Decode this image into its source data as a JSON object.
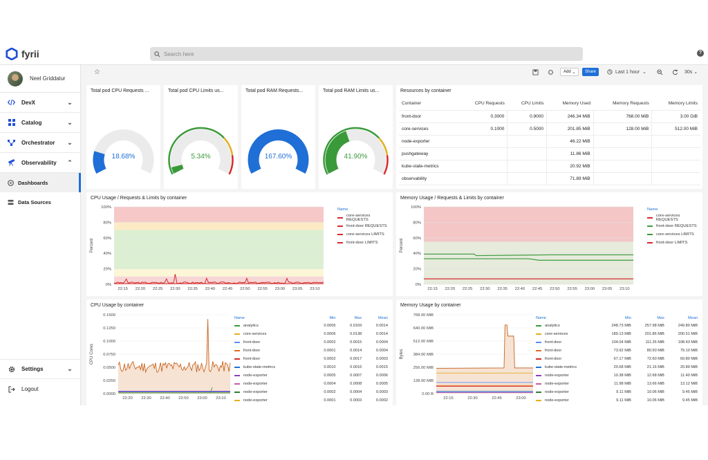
{
  "app": {
    "name": "fyrii",
    "search_placeholder": "Search here",
    "help": "?"
  },
  "user": {
    "name": "Neel Griddalur"
  },
  "nav": [
    {
      "label": "DevX",
      "icon": "code-icon"
    },
    {
      "label": "Catalog",
      "icon": "grid-icon"
    },
    {
      "label": "Orchestrator",
      "icon": "flow-icon"
    },
    {
      "label": "Observability",
      "icon": "telescope-icon"
    }
  ],
  "subnav": [
    {
      "label": "Dashboards",
      "active": true
    },
    {
      "label": "Data Sources",
      "active": false
    }
  ],
  "bottom_nav": {
    "settings": "Settings",
    "logout": "Logout"
  },
  "toolbar": {
    "add": "Add",
    "share": "Share",
    "time_range": "Last 1 hour",
    "refresh": "30s"
  },
  "gauges": [
    {
      "title": "Total pod CPU Requests ...",
      "value": "18.68%",
      "fill": 0.1868,
      "color": "#1f6fd6"
    },
    {
      "title": "Total pod CPU Limits us...",
      "value": "5.34%",
      "fill": 0.0534,
      "color": "#3a9a3a"
    },
    {
      "title": "Total pod RAM Requests...",
      "value": "167.60%",
      "fill": 1.0,
      "color": "#1f6fd6"
    },
    {
      "title": "Total pod RAM Limits us...",
      "value": "41.90%",
      "fill": 0.419,
      "color": "#3a9a3a"
    }
  ],
  "resources": {
    "title": "Resources by container",
    "headers": [
      "Container",
      "CPU Requests",
      "CPU Limits",
      "Memory Used",
      "Memory Requests",
      "Memory Limits"
    ],
    "rows": [
      [
        "front-door",
        "0.3000",
        "0.9000",
        "246.34 MiB",
        "768.00 MiB",
        "3.00 GiB"
      ],
      [
        "core-services",
        "0.1000",
        "0.5000",
        "201.85 MiB",
        "128.00 MiB",
        "512.00 MiB"
      ],
      [
        "node-exporter",
        "",
        "",
        "46.22 MiB",
        "",
        ""
      ],
      [
        "pushgateway",
        "",
        "",
        "11.86 MiB",
        "",
        ""
      ],
      [
        "kube-state-metrics",
        "",
        "",
        "20.92 MiB",
        "",
        ""
      ],
      [
        "observability",
        "",
        "",
        "71.89 MiB",
        "",
        ""
      ]
    ]
  },
  "cpu_req": {
    "title": "CPU Usage / Requests & Limits by container",
    "ylabel": "Percent",
    "legend_title": "Name",
    "yticks": [
      "100%",
      "80%",
      "60%",
      "40%",
      "20%",
      "0%"
    ],
    "xticks": [
      "22:15",
      "22:20",
      "22:25",
      "22:30",
      "22:35",
      "22:40",
      "22:45",
      "22:50",
      "22:55",
      "23:00",
      "23:05",
      "23:10"
    ],
    "legend": [
      {
        "name": "core-services REQUESTS",
        "color": "#d62a2a"
      },
      {
        "name": "front-door REQUESTS",
        "color": "#d62a2a"
      },
      {
        "name": "core-services LIMITS",
        "color": "#d62a2a"
      },
      {
        "name": "front-door LIMITS",
        "color": "#d62a2a"
      }
    ]
  },
  "mem_req": {
    "title": "Memory Usage / Requests & Limits by container",
    "ylabel": "Percent",
    "legend_title": "Name",
    "yticks": [
      "100%",
      "80%",
      "60%",
      "40%",
      "20%",
      "0%"
    ],
    "xticks": [
      "22:15",
      "22:20",
      "22:25",
      "22:30",
      "22:35",
      "22:40",
      "22:45",
      "22:50",
      "22:55",
      "23:00",
      "23:05",
      "23:10"
    ],
    "legend": [
      {
        "name": "core-services REQUESTS",
        "color": "#d62a2a"
      },
      {
        "name": "front-door REQUESTS",
        "color": "#3a9a3a"
      },
      {
        "name": "core-services LIMITS",
        "color": "#3a9a3a"
      },
      {
        "name": "front-door LIMITS",
        "color": "#d62a2a"
      }
    ]
  },
  "cpu_usage": {
    "title": "CPU Usage by container",
    "ylabel": "CPU Cores",
    "yticks": [
      "0.1500",
      "0.1250",
      "0.1000",
      "0.0750",
      "0.0500",
      "0.0250",
      "0.0000"
    ],
    "xticks": [
      "22:20",
      "22:30",
      "22:40",
      "22:50",
      "23:00",
      "23:10"
    ],
    "headers": [
      "Name",
      "Min",
      "Max",
      "Mean"
    ],
    "rows": [
      [
        "analytics",
        "0.0005",
        "0.0169",
        "0.0014",
        "#3a9a3a"
      ],
      [
        "core-services",
        "0.0006",
        "0.0138",
        "0.0014",
        "#e0b020"
      ],
      [
        "front-door",
        "0.0002",
        "0.0015",
        "0.0004",
        "#5b8def"
      ],
      [
        "front-door",
        "0.0001",
        "0.0014",
        "0.0004",
        "#e06b1f"
      ],
      [
        "front-door",
        "0.0002",
        "0.0017",
        "0.0003",
        "#d62a2a"
      ],
      [
        "kube-state-metrics",
        "0.0010",
        "0.0016",
        "0.0015",
        "#1f6fd6"
      ],
      [
        "node-exporter",
        "0.0005",
        "0.0007",
        "0.0006",
        "#8c3fbf"
      ],
      [
        "node-exporter",
        "0.0004",
        "0.0008",
        "0.0005",
        "#c85aa0"
      ],
      [
        "node-exporter",
        "0.0002",
        "0.0004",
        "0.0003",
        "#2e7d32"
      ],
      [
        "node-exporter",
        "0.0001",
        "0.0003",
        "0.0002",
        "#e0b020"
      ]
    ]
  },
  "mem_usage": {
    "title": "Memory Usage by container",
    "ylabel": "Bytes",
    "yticks": [
      "768.00 MiB",
      "640.00 MiB",
      "512.00 MiB",
      "384.00 MiB",
      "256.00 MiB",
      "128.00 MiB",
      "0.00 B"
    ],
    "xticks": [
      "22:15",
      "22:30",
      "22:45",
      "23:00"
    ],
    "headers": [
      "Name",
      "Min",
      "Max",
      "Mean"
    ],
    "rows": [
      [
        "analytics",
        "248.73 MiB",
        "257.98 MiB",
        "249.80 MiB",
        "#3a9a3a"
      ],
      [
        "core-services",
        "189.13 MiB",
        "201.86 MiB",
        "200.51 MiB",
        "#e0b020"
      ],
      [
        "front-door",
        "104.04 MiB",
        "111.26 MiB",
        "108.43 MiB",
        "#5b8def"
      ],
      [
        "front-door",
        "73.92 MiB",
        "80.50 MiB",
        "79.10 MiB",
        "#e06b1f"
      ],
      [
        "front-door",
        "67.17 MiB",
        "72.60 MiB",
        "69.80 MiB",
        "#d62a2a"
      ],
      [
        "kube-state-metrics",
        "20.68 MiB",
        "21.16 MiB",
        "20.89 MiB",
        "#1f6fd6"
      ],
      [
        "node-exporter",
        "10.38 MiB",
        "12.68 MiB",
        "11.40 MiB",
        "#8c3fbf"
      ],
      [
        "node-exporter",
        "11.98 MiB",
        "13.66 MiB",
        "13.12 MiB",
        "#c85aa0"
      ],
      [
        "node-exporter",
        "9.11 MiB",
        "10.06 MiB",
        "9.45 MiB",
        "#2e7d32"
      ],
      [
        "node-exporter",
        "9.11 MiB",
        "10.06 MiB",
        "9.45 MiB",
        "#e0b020"
      ]
    ]
  }
}
